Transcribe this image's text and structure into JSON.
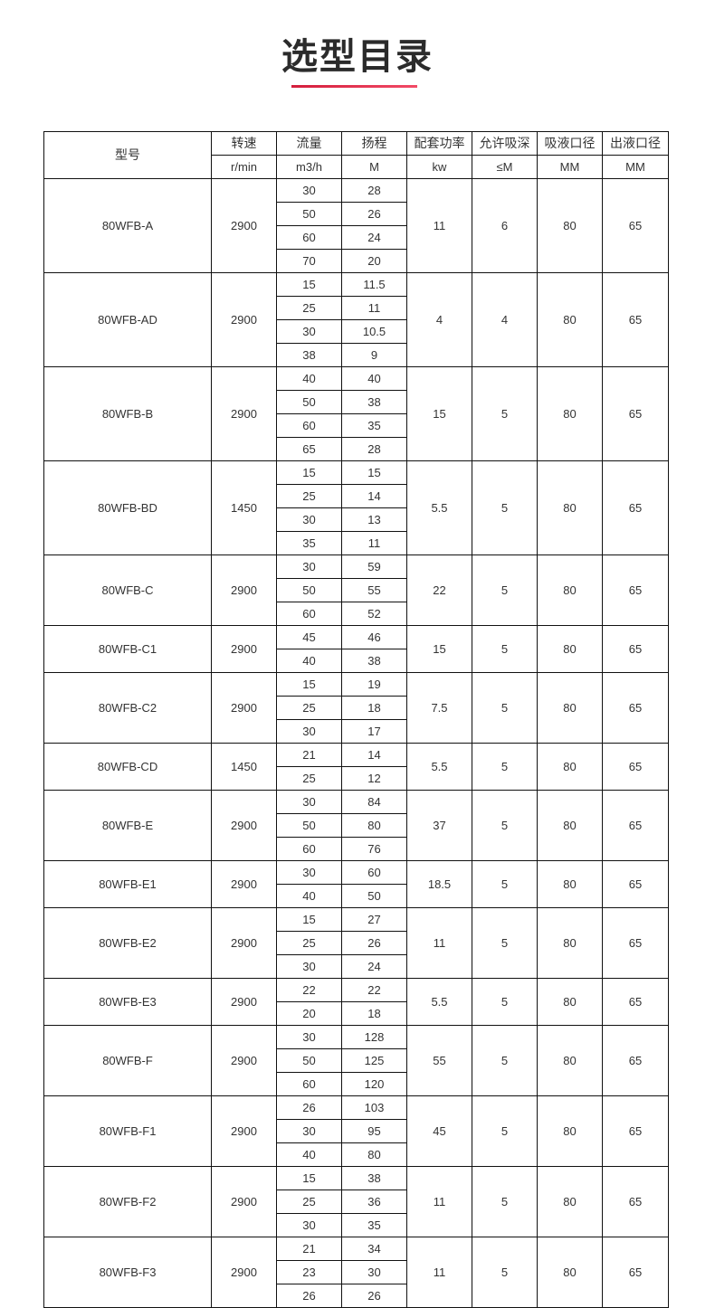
{
  "title": "选型目录",
  "accent_color": "#e0304e",
  "headers": {
    "model": "型号",
    "columns": [
      {
        "label": "转速",
        "unit": "r/min"
      },
      {
        "label": "流量",
        "unit": "m3/h"
      },
      {
        "label": "扬程",
        "unit": "M"
      },
      {
        "label": "配套功率",
        "unit": "kw"
      },
      {
        "label": "允许吸深",
        "unit": "≤M"
      },
      {
        "label": "吸液口径",
        "unit": "MM"
      },
      {
        "label": "出液口径",
        "unit": "MM"
      }
    ]
  },
  "rows": [
    {
      "model": "80WFB-A",
      "speed": "2900",
      "points": [
        [
          "30",
          "28"
        ],
        [
          "50",
          "26"
        ],
        [
          "60",
          "24"
        ],
        [
          "70",
          "20"
        ]
      ],
      "power": "11",
      "suction": "6",
      "inlet": "80",
      "outlet": "65"
    },
    {
      "model": "80WFB-AD",
      "speed": "2900",
      "points": [
        [
          "15",
          "11.5"
        ],
        [
          "25",
          "11"
        ],
        [
          "30",
          "10.5"
        ],
        [
          "38",
          "9"
        ]
      ],
      "power": "4",
      "suction": "4",
      "inlet": "80",
      "outlet": "65"
    },
    {
      "model": "80WFB-B",
      "speed": "2900",
      "points": [
        [
          "40",
          "40"
        ],
        [
          "50",
          "38"
        ],
        [
          "60",
          "35"
        ],
        [
          "65",
          "28"
        ]
      ],
      "power": "15",
      "suction": "5",
      "inlet": "80",
      "outlet": "65"
    },
    {
      "model": "80WFB-BD",
      "speed": "1450",
      "points": [
        [
          "15",
          "15"
        ],
        [
          "25",
          "14"
        ],
        [
          "30",
          "13"
        ],
        [
          "35",
          "11"
        ]
      ],
      "power": "5.5",
      "suction": "5",
      "inlet": "80",
      "outlet": "65"
    },
    {
      "model": "80WFB-C",
      "speed": "2900",
      "points": [
        [
          "30",
          "59"
        ],
        [
          "50",
          "55"
        ],
        [
          "60",
          "52"
        ]
      ],
      "power": "22",
      "suction": "5",
      "inlet": "80",
      "outlet": "65"
    },
    {
      "model": "80WFB-C1",
      "speed": "2900",
      "points": [
        [
          "45",
          "46"
        ],
        [
          "40",
          "38"
        ]
      ],
      "power": "15",
      "suction": "5",
      "inlet": "80",
      "outlet": "65"
    },
    {
      "model": "80WFB-C2",
      "speed": "2900",
      "points": [
        [
          "15",
          "19"
        ],
        [
          "25",
          "18"
        ],
        [
          "30",
          "17"
        ]
      ],
      "power": "7.5",
      "suction": "5",
      "inlet": "80",
      "outlet": "65"
    },
    {
      "model": "80WFB-CD",
      "speed": "1450",
      "points": [
        [
          "21",
          "14"
        ],
        [
          "25",
          "12"
        ]
      ],
      "power": "5.5",
      "suction": "5",
      "inlet": "80",
      "outlet": "65"
    },
    {
      "model": "80WFB-E",
      "speed": "2900",
      "points": [
        [
          "30",
          "84"
        ],
        [
          "50",
          "80"
        ],
        [
          "60",
          "76"
        ]
      ],
      "power": "37",
      "suction": "5",
      "inlet": "80",
      "outlet": "65"
    },
    {
      "model": "80WFB-E1",
      "speed": "2900",
      "points": [
        [
          "30",
          "60"
        ],
        [
          "40",
          "50"
        ]
      ],
      "power": "18.5",
      "suction": "5",
      "inlet": "80",
      "outlet": "65"
    },
    {
      "model": "80WFB-E2",
      "speed": "2900",
      "points": [
        [
          "15",
          "27"
        ],
        [
          "25",
          "26"
        ],
        [
          "30",
          "24"
        ]
      ],
      "power": "11",
      "suction": "5",
      "inlet": "80",
      "outlet": "65"
    },
    {
      "model": "80WFB-E3",
      "speed": "2900",
      "points": [
        [
          "22",
          "22"
        ],
        [
          "20",
          "18"
        ]
      ],
      "power": "5.5",
      "suction": "5",
      "inlet": "80",
      "outlet": "65"
    },
    {
      "model": "80WFB-F",
      "speed": "2900",
      "points": [
        [
          "30",
          "128"
        ],
        [
          "50",
          "125"
        ],
        [
          "60",
          "120"
        ]
      ],
      "power": "55",
      "suction": "5",
      "inlet": "80",
      "outlet": "65"
    },
    {
      "model": "80WFB-F1",
      "speed": "2900",
      "points": [
        [
          "26",
          "103"
        ],
        [
          "30",
          "95"
        ],
        [
          "40",
          "80"
        ]
      ],
      "power": "45",
      "suction": "5",
      "inlet": "80",
      "outlet": "65"
    },
    {
      "model": "80WFB-F2",
      "speed": "2900",
      "points": [
        [
          "15",
          "38"
        ],
        [
          "25",
          "36"
        ],
        [
          "30",
          "35"
        ]
      ],
      "power": "11",
      "suction": "5",
      "inlet": "80",
      "outlet": "65"
    },
    {
      "model": "80WFB-F3",
      "speed": "2900",
      "points": [
        [
          "21",
          "34"
        ],
        [
          "23",
          "30"
        ],
        [
          "26",
          "26"
        ]
      ],
      "power": "11",
      "suction": "5",
      "inlet": "80",
      "outlet": "65"
    }
  ]
}
